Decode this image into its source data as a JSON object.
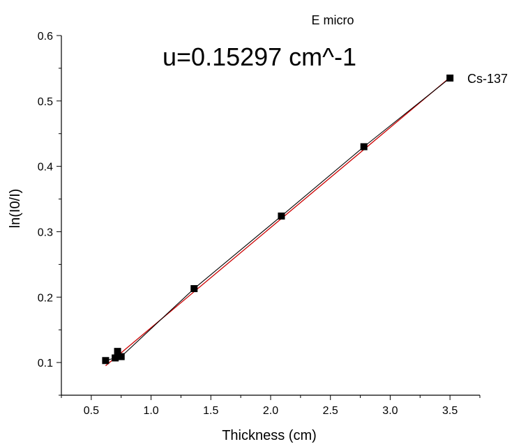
{
  "chart_data": {
    "type": "scatter",
    "title": "E micro",
    "annotations": {
      "equation": "u=0.15297 cm^-1",
      "source_label": "Cs-137"
    },
    "xlabel": "Thickness (cm)",
    "ylabel": "ln(I0/I)",
    "xlim": [
      0.25,
      3.75
    ],
    "ylim": [
      0.05,
      0.6
    ],
    "x_ticks": [
      0.5,
      1.0,
      1.5,
      2.0,
      2.5,
      3.0,
      3.5
    ],
    "x_tick_labels": [
      "0.5",
      "1.0",
      "1.5",
      "2.0",
      "2.5",
      "3.0",
      "3.5"
    ],
    "y_ticks": [
      0.1,
      0.2,
      0.3,
      0.4,
      0.5,
      0.6
    ],
    "y_tick_labels": [
      "0.1",
      "0.2",
      "0.3",
      "0.4",
      "0.5",
      "0.6"
    ],
    "grid": false,
    "series": [
      {
        "style": "square markers connected by black line",
        "color": "#000000",
        "points": [
          {
            "x": 0.62,
            "y": 0.103
          },
          {
            "x": 0.7,
            "y": 0.107
          },
          {
            "x": 0.72,
            "y": 0.117
          },
          {
            "x": 0.75,
            "y": 0.109
          },
          {
            "x": 1.36,
            "y": 0.213
          },
          {
            "x": 2.09,
            "y": 0.324
          },
          {
            "x": 2.78,
            "y": 0.43
          },
          {
            "x": 3.5,
            "y": 0.535
          }
        ]
      },
      {
        "style": "linear fit line",
        "color": "#cc0000",
        "points": [
          {
            "x": 0.62,
            "y": 0.095
          },
          {
            "x": 3.5,
            "y": 0.536
          }
        ]
      }
    ]
  }
}
